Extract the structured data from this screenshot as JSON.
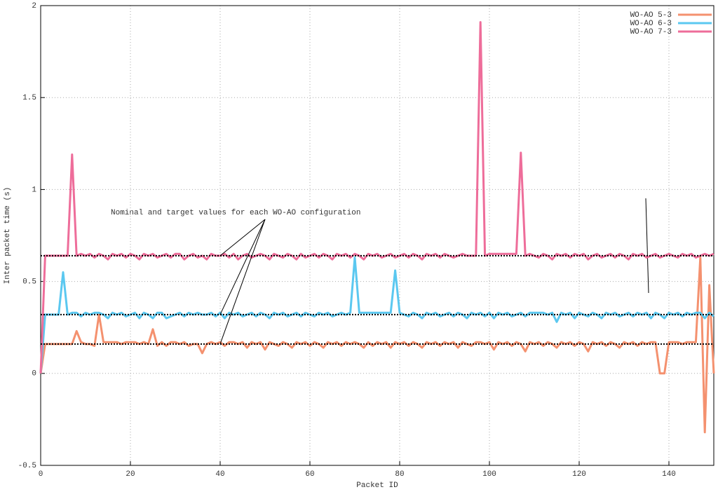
{
  "chart_data": {
    "type": "line",
    "xlabel": "Packet ID",
    "ylabel": "Inter packet time (s)",
    "annotation": "Nominal and target values for each WO-AO configuration",
    "xlim": [
      0,
      150
    ],
    "ylim": [
      -0.5,
      2
    ],
    "xticks": [
      0,
      20,
      40,
      60,
      80,
      100,
      120,
      140
    ],
    "yticks": [
      -0.5,
      0,
      0.5,
      1,
      1.5,
      2
    ],
    "grid": true,
    "legend": "upper right",
    "reference_lines": [
      0.16,
      0.32,
      0.64
    ],
    "reference_color": "#000000",
    "x": [
      0,
      1,
      2,
      3,
      4,
      5,
      6,
      7,
      8,
      9,
      10,
      11,
      12,
      13,
      14,
      15,
      16,
      17,
      18,
      19,
      20,
      21,
      22,
      23,
      24,
      25,
      26,
      27,
      28,
      29,
      30,
      31,
      32,
      33,
      34,
      35,
      36,
      37,
      38,
      39,
      40,
      41,
      42,
      43,
      44,
      45,
      46,
      47,
      48,
      49,
      50,
      51,
      52,
      53,
      54,
      55,
      56,
      57,
      58,
      59,
      60,
      61,
      62,
      63,
      64,
      65,
      66,
      67,
      68,
      69,
      70,
      71,
      72,
      73,
      74,
      75,
      76,
      77,
      78,
      79,
      80,
      81,
      82,
      83,
      84,
      85,
      86,
      87,
      88,
      89,
      90,
      91,
      92,
      93,
      94,
      95,
      96,
      97,
      98,
      99,
      100,
      101,
      102,
      103,
      104,
      105,
      106,
      107,
      108,
      109,
      110,
      111,
      112,
      113,
      114,
      115,
      116,
      117,
      118,
      119,
      120,
      121,
      122,
      123,
      124,
      125,
      126,
      127,
      128,
      129,
      130,
      131,
      132,
      133,
      134,
      135,
      136,
      137,
      138,
      139,
      140,
      141,
      142,
      143,
      144,
      145,
      146,
      147,
      148,
      149,
      150
    ],
    "series": [
      {
        "name": "WO-AO 5-3",
        "color": "#f4916f",
        "values": [
          0,
          0.16,
          0.16,
          0.16,
          0.16,
          0.16,
          0.16,
          0.16,
          0.23,
          0.17,
          0.16,
          0.16,
          0.15,
          0.32,
          0.17,
          0.17,
          0.17,
          0.17,
          0.16,
          0.17,
          0.17,
          0.17,
          0.16,
          0.17,
          0.16,
          0.24,
          0.15,
          0.17,
          0.15,
          0.17,
          0.17,
          0.16,
          0.17,
          0.15,
          0.16,
          0.16,
          0.11,
          0.16,
          0.17,
          0.16,
          0.17,
          0.15,
          0.17,
          0.17,
          0.16,
          0.17,
          0.14,
          0.17,
          0.16,
          0.17,
          0.13,
          0.17,
          0.16,
          0.15,
          0.17,
          0.16,
          0.14,
          0.17,
          0.16,
          0.17,
          0.15,
          0.17,
          0.16,
          0.14,
          0.17,
          0.16,
          0.17,
          0.15,
          0.17,
          0.16,
          0.17,
          0.16,
          0.14,
          0.17,
          0.15,
          0.17,
          0.16,
          0.17,
          0.14,
          0.17,
          0.16,
          0.17,
          0.15,
          0.17,
          0.16,
          0.14,
          0.17,
          0.16,
          0.17,
          0.15,
          0.17,
          0.16,
          0.17,
          0.14,
          0.17,
          0.16,
          0.15,
          0.17,
          0.17,
          0.16,
          0.17,
          0.13,
          0.17,
          0.16,
          0.17,
          0.15,
          0.17,
          0.16,
          0.12,
          0.17,
          0.16,
          0.17,
          0.15,
          0.17,
          0.16,
          0.14,
          0.17,
          0.16,
          0.17,
          0.15,
          0.17,
          0.16,
          0.12,
          0.17,
          0.16,
          0.17,
          0.15,
          0.17,
          0.16,
          0.14,
          0.17,
          0.16,
          0.17,
          0.15,
          0.17,
          0.16,
          0.17,
          0.17,
          0,
          0,
          0.17,
          0.17,
          0.17,
          0.16,
          0.17,
          0.17,
          0.17,
          0.63,
          -0.32,
          0.48,
          0
        ]
      },
      {
        "name": "WO-AO 6-3",
        "color": "#5bc8f0",
        "values": [
          0,
          0.32,
          0.32,
          0.32,
          0.32,
          0.55,
          0.32,
          0.33,
          0.33,
          0.31,
          0.33,
          0.32,
          0.33,
          0.33,
          0.32,
          0.3,
          0.33,
          0.32,
          0.33,
          0.31,
          0.32,
          0.33,
          0.3,
          0.33,
          0.32,
          0.3,
          0.33,
          0.33,
          0.3,
          0.31,
          0.32,
          0.33,
          0.31,
          0.33,
          0.32,
          0.33,
          0.32,
          0.32,
          0.33,
          0.31,
          0.33,
          0.3,
          0.33,
          0.32,
          0.33,
          0.31,
          0.32,
          0.33,
          0.31,
          0.33,
          0.32,
          0.3,
          0.33,
          0.32,
          0.33,
          0.31,
          0.32,
          0.33,
          0.31,
          0.33,
          0.32,
          0.31,
          0.33,
          0.32,
          0.33,
          0.31,
          0.32,
          0.33,
          0.32,
          0.33,
          0.63,
          0.33,
          0.33,
          0.33,
          0.33,
          0.33,
          0.33,
          0.33,
          0.33,
          0.56,
          0.33,
          0.32,
          0.31,
          0.33,
          0.32,
          0.3,
          0.33,
          0.32,
          0.33,
          0.31,
          0.32,
          0.33,
          0.31,
          0.33,
          0.32,
          0.3,
          0.33,
          0.32,
          0.33,
          0.31,
          0.33,
          0.3,
          0.33,
          0.32,
          0.33,
          0.31,
          0.32,
          0.33,
          0.31,
          0.33,
          0.33,
          0.33,
          0.33,
          0.32,
          0.33,
          0.28,
          0.33,
          0.32,
          0.33,
          0.3,
          0.33,
          0.32,
          0.31,
          0.33,
          0.32,
          0.3,
          0.33,
          0.32,
          0.33,
          0.31,
          0.32,
          0.33,
          0.31,
          0.33,
          0.32,
          0.33,
          0.3,
          0.33,
          0.32,
          0.3,
          0.33,
          0.32,
          0.33,
          0.31,
          0.33,
          0.32,
          0.33,
          0.33,
          0.3,
          0.33,
          0.31
        ]
      },
      {
        "name": "WO-AO 7-3",
        "color": "#ee6d9a",
        "values": [
          0,
          0.64,
          0.64,
          0.64,
          0.64,
          0.64,
          0.64,
          1.19,
          0.64,
          0.65,
          0.64,
          0.65,
          0.63,
          0.65,
          0.64,
          0.62,
          0.65,
          0.64,
          0.65,
          0.63,
          0.65,
          0.64,
          0.62,
          0.65,
          0.64,
          0.65,
          0.63,
          0.64,
          0.65,
          0.63,
          0.65,
          0.65,
          0.62,
          0.64,
          0.65,
          0.63,
          0.64,
          0.62,
          0.65,
          0.64,
          0.64,
          0.65,
          0.63,
          0.65,
          0.62,
          0.64,
          0.65,
          0.63,
          0.64,
          0.65,
          0.64,
          0.62,
          0.65,
          0.64,
          0.63,
          0.65,
          0.64,
          0.62,
          0.65,
          0.63,
          0.64,
          0.65,
          0.63,
          0.65,
          0.64,
          0.62,
          0.65,
          0.64,
          0.65,
          0.63,
          0.65,
          0.64,
          0.62,
          0.65,
          0.64,
          0.65,
          0.63,
          0.64,
          0.65,
          0.63,
          0.64,
          0.65,
          0.63,
          0.65,
          0.64,
          0.62,
          0.65,
          0.64,
          0.65,
          0.63,
          0.65,
          0.64,
          0.63,
          0.64,
          0.65,
          0.64,
          0.64,
          0.64,
          1.91,
          0.64,
          0.65,
          0.65,
          0.65,
          0.65,
          0.65,
          0.65,
          0.65,
          1.2,
          0.64,
          0.65,
          0.64,
          0.63,
          0.65,
          0.64,
          0.62,
          0.65,
          0.64,
          0.65,
          0.63,
          0.65,
          0.64,
          0.65,
          0.62,
          0.64,
          0.65,
          0.63,
          0.64,
          0.65,
          0.63,
          0.65,
          0.64,
          0.62,
          0.65,
          0.64,
          0.65,
          0.63,
          0.64,
          0.65,
          0.63,
          0.64,
          0.65,
          0.64,
          0.63,
          0.65,
          0.64,
          0.65,
          0.63,
          0.64,
          0.65,
          0.64,
          0.65
        ]
      }
    ]
  }
}
